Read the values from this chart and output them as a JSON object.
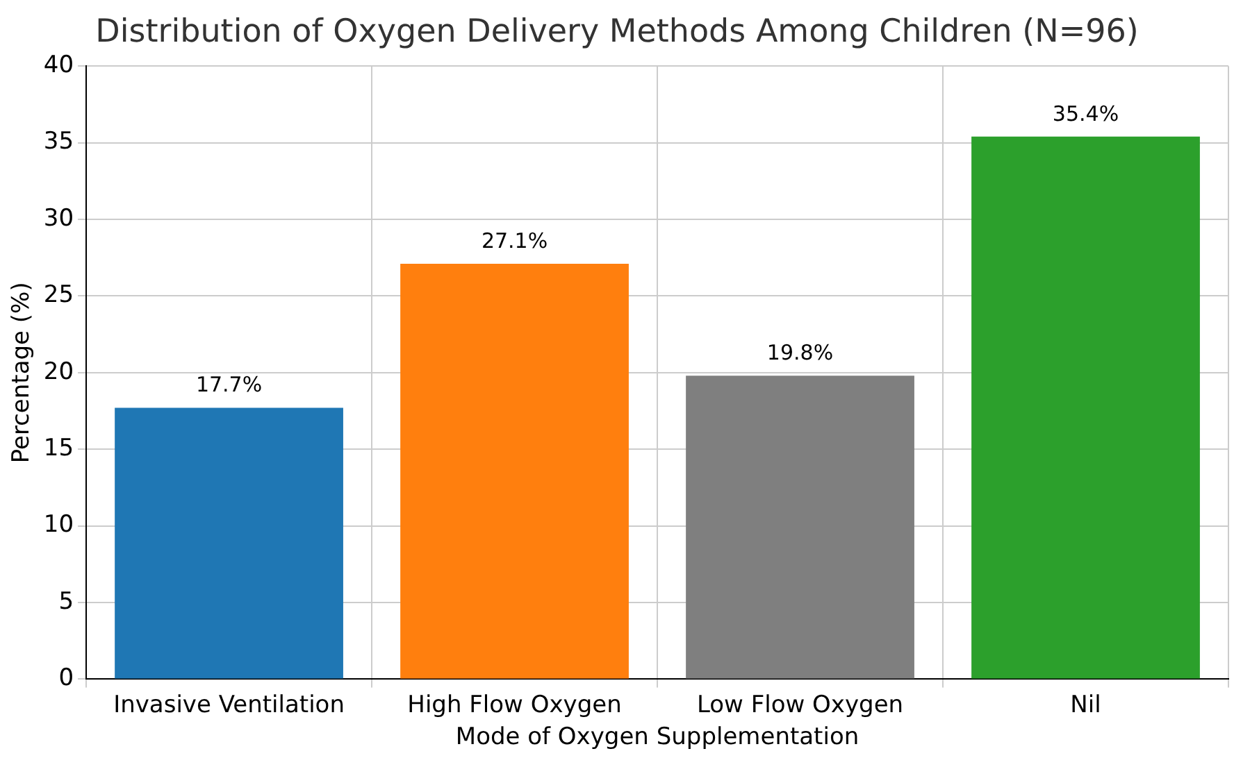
{
  "chart_data": {
    "type": "bar",
    "title": "Distribution of Oxygen Delivery Methods Among Children (N=96)",
    "xlabel": "Mode of Oxygen Supplementation",
    "ylabel": "Percentage (%)",
    "categories": [
      "Invasive Ventilation",
      "High Flow Oxygen",
      "Low Flow Oxygen",
      "Nil"
    ],
    "values": [
      17.7,
      27.1,
      19.8,
      35.4
    ],
    "colors": [
      "#1f77b4",
      "#ff7f0e",
      "#7f7f7f",
      "#2ca02c"
    ],
    "value_labels": [
      "17.7%",
      "27.1%",
      "19.8%",
      "35.4%"
    ],
    "ylim": [
      0,
      40
    ],
    "yticks": [
      0,
      5,
      10,
      15,
      20,
      25,
      30,
      35,
      40
    ],
    "grid": true
  }
}
